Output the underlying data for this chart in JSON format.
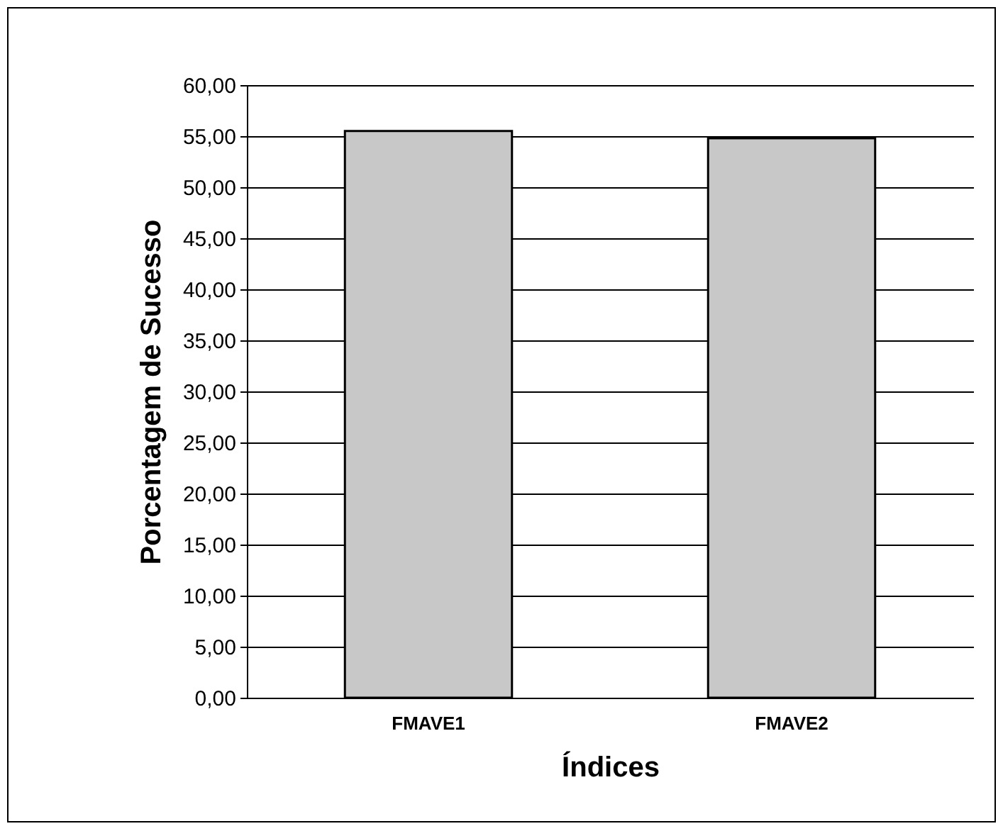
{
  "chart_data": {
    "type": "bar",
    "xlabel": "Índices",
    "ylabel": "Porcentagem de Sucesso",
    "categories": [
      "FMAVE1",
      "FMAVE2"
    ],
    "values": [
      55.5,
      54.8
    ],
    "color": "#c8c8c8",
    "ylim": [
      0,
      60
    ],
    "yticks": [
      {
        "value": 0,
        "label": "0,00"
      },
      {
        "value": 5,
        "label": "5,00"
      },
      {
        "value": 10,
        "label": "10,00"
      },
      {
        "value": 15,
        "label": "15,00"
      },
      {
        "value": 20,
        "label": "20,00"
      },
      {
        "value": 25,
        "label": "25,00"
      },
      {
        "value": 30,
        "label": "30,00"
      },
      {
        "value": 35,
        "label": "35,00"
      },
      {
        "value": 40,
        "label": "40,00"
      },
      {
        "value": 45,
        "label": "45,00"
      },
      {
        "value": 50,
        "label": "50,00"
      },
      {
        "value": 55,
        "label": "55,00"
      },
      {
        "value": 60,
        "label": "60,00"
      }
    ],
    "grid": "y"
  }
}
